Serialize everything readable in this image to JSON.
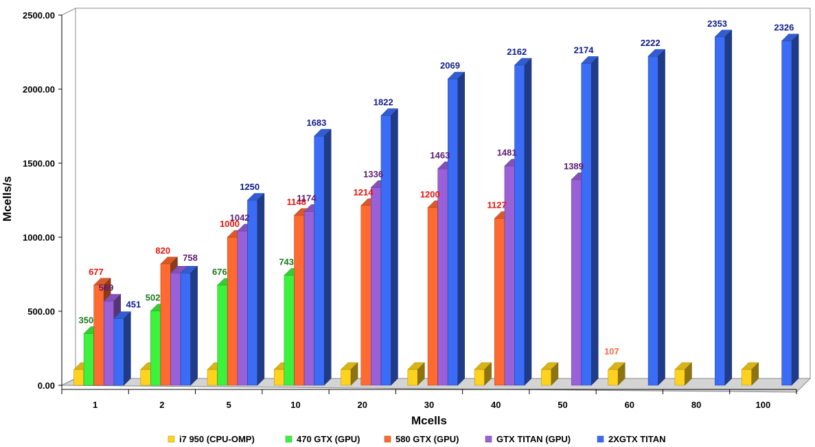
{
  "chart_data": {
    "type": "bar",
    "style": "3d-clustered-column",
    "xlabel": "Mcells",
    "ylabel": "Mcells/s",
    "ylim": [
      0,
      2500
    ],
    "yticks": [
      "0.00",
      "500.00",
      "1000.00",
      "1500.00",
      "2000.00",
      "2500.00"
    ],
    "categories": [
      "1",
      "2",
      "5",
      "10",
      "20",
      "30",
      "40",
      "50",
      "60",
      "80",
      "100"
    ],
    "grid": false,
    "legend_position": "bottom",
    "series": [
      {
        "name": "i7 950 (CPU-OMP)",
        "color": "#ffd21e",
        "label_color": "#ff6a3d",
        "values": [
          107,
          107,
          107,
          107,
          107,
          107,
          107,
          107,
          107,
          107,
          107
        ],
        "labels": [
          "",
          "",
          "",
          "",
          "",
          "",
          "",
          "",
          "107",
          "",
          ""
        ]
      },
      {
        "name": "470 GTX (GPU)",
        "color": "#3df23d",
        "label_color": "#1a7a1a",
        "values": [
          350,
          502,
          676,
          743,
          null,
          null,
          null,
          null,
          null,
          null,
          null
        ],
        "labels": [
          "350",
          "502",
          "676",
          "743",
          "",
          "",
          "",
          "",
          "",
          "",
          ""
        ]
      },
      {
        "name": "580 GTX (GPU)",
        "color": "#ff6a30",
        "label_color": "#e8140a",
        "values": [
          677,
          820,
          1000,
          1148,
          1214,
          1200,
          1127,
          null,
          null,
          null,
          null
        ],
        "labels": [
          "677",
          "820",
          "1000",
          "1148",
          "1214",
          "1200",
          "1127",
          "",
          "",
          "",
          ""
        ]
      },
      {
        "name": "GTX TITAN (GPU)",
        "color": "#9a60d8",
        "label_color": "#5b1a6e",
        "values": [
          569,
          758,
          1042,
          1174,
          1336,
          1463,
          1481,
          1389,
          null,
          null,
          null
        ],
        "labels": [
          "569",
          "758",
          "1042",
          "1174",
          "1336",
          "1463",
          "1481",
          "1389",
          "",
          "",
          ""
        ]
      },
      {
        "name": "2XGTX TITAN",
        "color": "#3b6cf5",
        "label_color": "#0d1a8a",
        "values": [
          451,
          758,
          1250,
          1683,
          1822,
          2069,
          2162,
          2174,
          2222,
          2353,
          2326
        ],
        "labels": [
          "451",
          "",
          "1250",
          "1683",
          "1822",
          "2069",
          "2162",
          "2174",
          "2222",
          "2353",
          "2326"
        ]
      }
    ]
  }
}
